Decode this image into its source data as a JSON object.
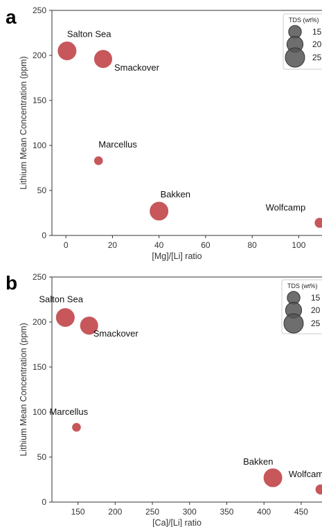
{
  "chart_data": [
    {
      "type": "scatter",
      "panel_label": "a",
      "xlabel": "[Mg]/[Li] ratio",
      "ylabel": "Lithium Mean Concentration (ppm)",
      "xlim": [
        -6,
        110
      ],
      "ylim": [
        0,
        250
      ],
      "xticks": [
        0,
        20,
        40,
        60,
        80,
        100
      ],
      "yticks": [
        0,
        50,
        100,
        150,
        200,
        250
      ],
      "grid": false,
      "legend": {
        "title": "TDS (wt%)",
        "position": "top-right",
        "labels": [
          "15",
          "20",
          "25"
        ],
        "sizes": [
          15,
          20,
          25
        ]
      },
      "color": "#c44e52",
      "points": [
        {
          "name": "Salton Sea",
          "x": 0.5,
          "y": 205,
          "tds": 25
        },
        {
          "name": "Smackover",
          "x": 16,
          "y": 196,
          "tds": 24
        },
        {
          "name": "Marcellus",
          "x": 14,
          "y": 83,
          "tds": 10
        },
        {
          "name": "Bakken",
          "x": 40,
          "y": 27,
          "tds": 25
        },
        {
          "name": "Wolfcamp",
          "x": 109,
          "y": 14,
          "tds": 12
        }
      ]
    },
    {
      "type": "scatter",
      "panel_label": "b",
      "xlabel": "[Ca]/[Li] ratio",
      "ylabel": "Lithium Mean Concentration (ppm)",
      "xlim": [
        115,
        478
      ],
      "ylim": [
        0,
        250
      ],
      "xticks": [
        150,
        200,
        250,
        300,
        350,
        400,
        450
      ],
      "yticks": [
        0,
        50,
        100,
        150,
        200,
        250
      ],
      "grid": false,
      "legend": {
        "title": "TDS (wt%)",
        "position": "top-right",
        "labels": [
          "15",
          "20",
          "25"
        ],
        "sizes": [
          15,
          20,
          25
        ]
      },
      "color": "#c44e52",
      "points": [
        {
          "name": "Salton Sea",
          "x": 133,
          "y": 205,
          "tds": 25
        },
        {
          "name": "Smackover",
          "x": 165,
          "y": 196,
          "tds": 24
        },
        {
          "name": "Marcellus",
          "x": 148,
          "y": 83,
          "tds": 10
        },
        {
          "name": "Bakken",
          "x": 412,
          "y": 27,
          "tds": 25
        },
        {
          "name": "Wolfcamp",
          "x": 476,
          "y": 14,
          "tds": 12
        }
      ]
    }
  ]
}
